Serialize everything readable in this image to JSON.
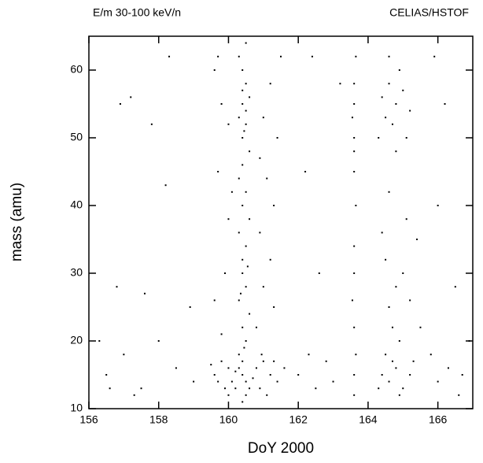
{
  "chart_data": {
    "type": "scatter",
    "annotations": [
      "E/m 30-100 keV/n",
      "CELIAS/HSTOF"
    ],
    "xlabel": "DoY 2000",
    "ylabel": "mass (amu)",
    "color": "#000000",
    "xlim": [
      156,
      167
    ],
    "xticks": [
      156,
      158,
      160,
      162,
      164,
      166
    ],
    "ylim": [
      10,
      65
    ],
    "yticks": [
      10,
      20,
      30,
      40,
      50,
      60
    ],
    "x": [
      160.4,
      160.5,
      160.3,
      160.6,
      160.4,
      160.5,
      160.2,
      160.7,
      160.4,
      160.3,
      160.5,
      160.4,
      160.6,
      160.3,
      160.5,
      160.4,
      160.4,
      160.5,
      160.3,
      160.6,
      160.4,
      160.5,
      160.3,
      160.4,
      160.6,
      160.4,
      160.5,
      160.3,
      160.4,
      160.6,
      160.5,
      160.4,
      160.3,
      160.5,
      160.45,
      160.35,
      160.55,
      160.45,
      160.5,
      160.4,
      159.6,
      159.8,
      159.9,
      160.0,
      160.1,
      160.8,
      160.9,
      161.0,
      161.2,
      161.4,
      161.6,
      159.7,
      161.1,
      160.95,
      159.5,
      161.3,
      160.0,
      160.2,
      159.6,
      159.8,
      160.0,
      161.0,
      161.2,
      161.4,
      159.7,
      161.1,
      160.0,
      160.9,
      159.9,
      161.0,
      161.3,
      159.6,
      160.8,
      159.8,
      161.2,
      159.7,
      161.5,
      160.9,
      160.1,
      161.3,
      163.6,
      163.6,
      163.65,
      163.6,
      163.55,
      163.6,
      163.6,
      163.65,
      163.6,
      163.6,
      163.55,
      163.6,
      163.6,
      163.65,
      163.6,
      164.4,
      164.6,
      164.8,
      165.0,
      164.5,
      164.7,
      164.9,
      164.3,
      165.2,
      164.6,
      165.1,
      164.8,
      164.4,
      164.6,
      164.8,
      165.0,
      164.7,
      164.5,
      165.2,
      164.9,
      165.3,
      164.3,
      164.6,
      164.8,
      165.0,
      164.5,
      165.2,
      164.7,
      165.4,
      164.4,
      164.9,
      165.5,
      165.1,
      164.6,
      156.5,
      157.0,
      156.8,
      157.2,
      157.5,
      158.0,
      158.5,
      157.8,
      158.9,
      159.0,
      156.3,
      156.9,
      157.3,
      158.3,
      162.0,
      162.3,
      162.5,
      162.8,
      163.0,
      162.2,
      162.6,
      163.2,
      165.8,
      166.0,
      166.3,
      166.6,
      166.9,
      166.2,
      166.5,
      166.0,
      165.9,
      166.7,
      162.4,
      156.6,
      157.6,
      158.2
    ],
    "values": [
      15,
      14,
      16,
      13,
      17,
      12,
      15.5,
      14.5,
      11,
      18,
      20,
      22,
      24,
      26,
      28,
      30,
      32,
      34,
      36,
      38,
      40,
      42,
      44,
      46,
      48,
      50,
      52,
      53,
      55,
      56,
      58,
      60,
      62,
      64,
      19,
      27,
      31,
      51,
      54,
      57,
      15,
      17,
      13,
      16,
      14,
      16,
      13,
      17,
      15,
      14,
      16,
      14,
      12,
      18,
      16.5,
      17,
      12,
      13,
      60,
      55,
      52,
      53,
      58,
      50,
      45,
      44,
      38,
      36,
      30,
      28,
      25,
      26,
      22,
      21,
      32,
      62,
      62,
      47,
      42,
      40,
      12,
      15,
      18,
      22,
      26,
      30,
      34,
      40,
      45,
      50,
      53,
      55,
      58,
      62,
      48,
      56,
      58,
      55,
      57,
      53,
      52,
      60,
      50,
      54,
      62,
      50,
      48,
      15,
      14,
      16,
      13,
      17,
      18,
      15,
      12,
      17,
      13,
      25,
      28,
      30,
      32,
      26,
      22,
      35,
      36,
      20,
      22,
      38,
      42,
      15,
      18,
      28,
      56,
      13,
      20,
      16,
      52,
      25,
      14,
      20,
      55,
      12,
      62,
      15,
      18,
      13,
      17,
      14,
      45,
      30,
      58,
      18,
      14,
      16,
      12,
      20,
      55,
      28,
      40,
      62,
      15,
      62,
      13,
      27,
      43
    ]
  }
}
